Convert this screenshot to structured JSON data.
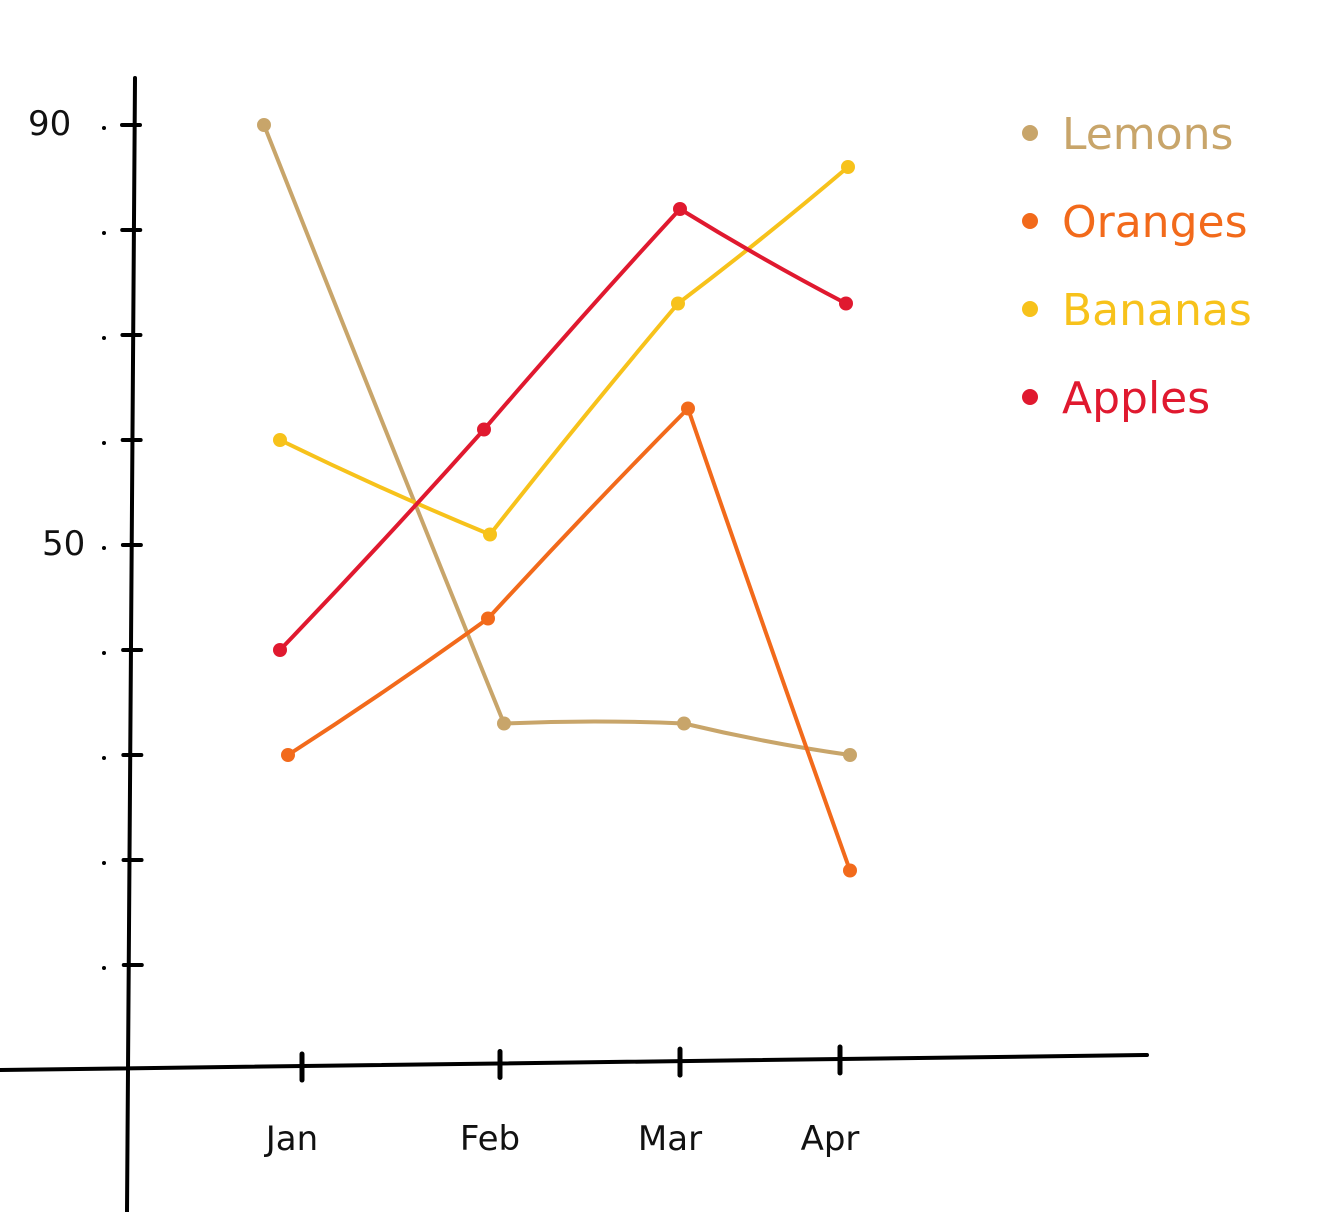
{
  "chart_data": {
    "type": "line",
    "categories": [
      "Jan",
      "Feb",
      "Mar",
      "Apr"
    ],
    "series": [
      {
        "name": "Lemons",
        "color": "#c8a56a",
        "values": [
          90,
          33,
          33,
          30
        ]
      },
      {
        "name": "Oranges",
        "color": "#f26a1b",
        "values": [
          30,
          43,
          63,
          19
        ]
      },
      {
        "name": "Bananas",
        "color": "#f7c21b",
        "values": [
          60,
          51,
          73,
          86
        ]
      },
      {
        "name": "Apples",
        "color": "#e0192f",
        "values": [
          40,
          61,
          82,
          73
        ]
      }
    ],
    "yticks": [
      {
        "value": 90,
        "label": "90"
      },
      {
        "value": 80,
        "label": ""
      },
      {
        "value": 70,
        "label": ""
      },
      {
        "value": 60,
        "label": ""
      },
      {
        "value": 50,
        "label": "50"
      },
      {
        "value": 40,
        "label": ""
      },
      {
        "value": 30,
        "label": ""
      },
      {
        "value": 20,
        "label": ""
      },
      {
        "value": 10,
        "label": ""
      }
    ],
    "ylim": [
      0,
      90
    ],
    "grid": false,
    "legend_position": "top-right"
  }
}
